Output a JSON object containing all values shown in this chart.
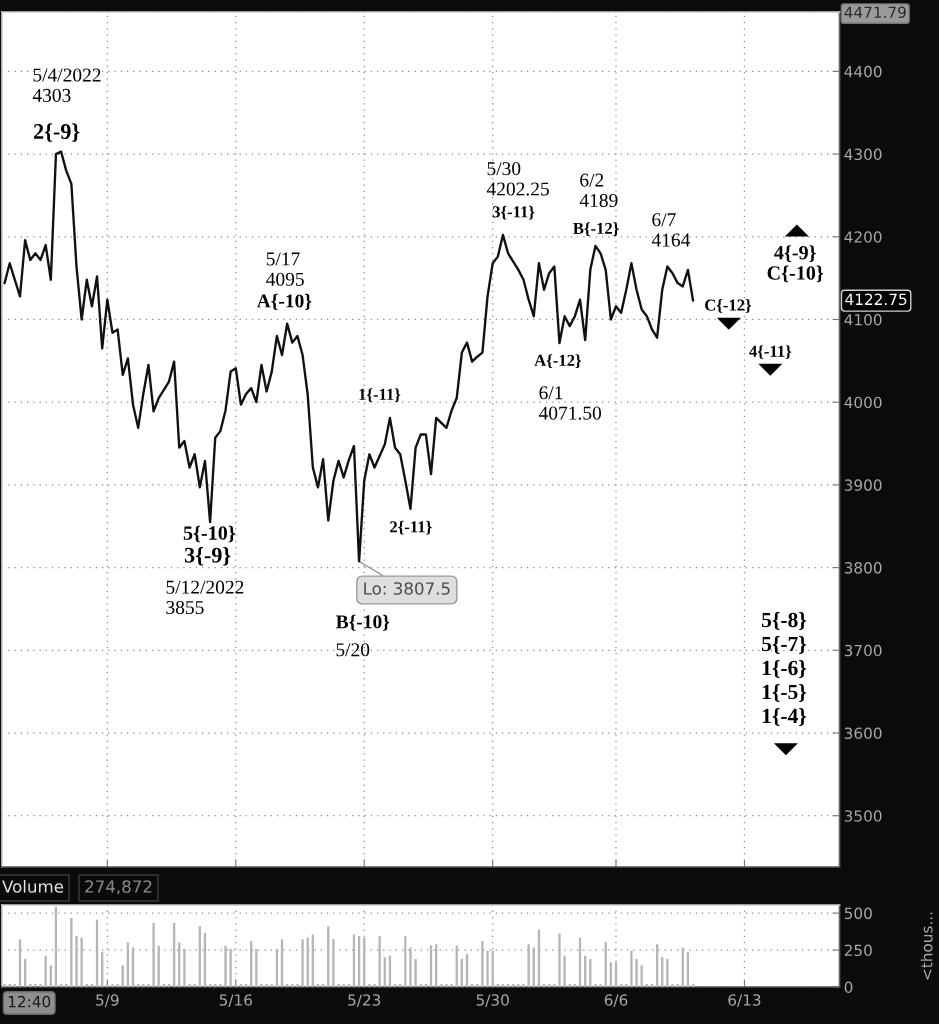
{
  "chart_data": [
    {
      "type": "line",
      "categories": [
        null,
        null,
        null,
        null,
        null,
        null,
        null,
        null,
        null,
        null,
        null,
        null,
        null,
        null,
        null,
        null,
        null,
        null,
        null,
        null,
        null,
        null,
        null,
        null,
        null,
        null,
        null,
        null,
        null,
        null,
        null,
        null,
        null,
        null,
        null,
        null,
        null,
        null,
        null,
        null,
        null,
        null,
        null,
        null,
        null,
        null,
        null,
        null,
        null,
        null,
        null,
        null,
        null,
        null,
        null,
        null,
        null,
        null,
        null,
        null,
        null,
        null,
        null,
        null,
        null,
        null,
        null,
        null,
        null,
        null,
        null,
        null,
        null,
        null,
        null,
        null,
        null,
        null,
        null,
        null,
        null,
        null,
        null,
        null,
        null,
        null,
        null,
        null,
        null,
        null,
        null,
        null,
        null,
        null,
        null,
        null,
        null,
        null,
        null,
        null,
        null,
        null,
        null,
        null,
        null,
        null,
        null,
        null,
        null,
        null,
        null,
        null,
        null,
        null,
        null,
        null,
        null,
        null,
        null,
        null,
        null,
        null,
        null,
        null,
        null,
        null,
        null,
        null,
        null,
        null,
        null,
        null,
        null,
        null,
        null,
        null,
        null,
        null,
        null,
        null,
        null,
        null,
        null,
        null,
        null,
        null,
        null,
        null,
        null,
        null,
        null,
        null,
        null,
        null,
        null,
        null,
        null,
        null,
        null,
        null,
        null,
        null,
        null
      ],
      "series": [
        {
          "color": "#111111",
          "values": [
            4144,
            4168,
            4148,
            4128,
            4196,
            4172,
            4180,
            4172,
            4190,
            4148,
            4300,
            4303,
            4280,
            4264,
            4164,
            4100,
            4148,
            4116,
            4152,
            4065,
            4124,
            4084,
            4088,
            4033,
            4053,
            3997,
            3969,
            4010,
            4045,
            3989,
            4005,
            4015,
            4025,
            4049,
            3945,
            3953,
            3921,
            3937,
            3897,
            3929,
            3855,
            3957,
            3965,
            3990,
            4037,
            4041,
            3997,
            4010,
            4017,
            4000,
            4045,
            4013,
            4037,
            4080,
            4057,
            4095,
            4072,
            4080,
            4057,
            4009,
            3921,
            3897,
            3931,
            3857,
            3905,
            3929,
            3909,
            3930,
            3947,
            3807.5,
            3905,
            3937,
            3921,
            3935,
            3949,
            3981,
            3945,
            3937,
            3905,
            3871,
            3945,
            3961,
            3961,
            3913,
            3981,
            3975,
            3969,
            3990,
            4005,
            4060,
            4072,
            4049,
            4055,
            4060,
            4128,
            4168,
            4176,
            4202.25,
            4180,
            4170,
            4160,
            4148,
            4124,
            4104,
            4168,
            4136,
            4156,
            4164,
            4071.5,
            4104,
            4092,
            4104,
            4124,
            4075,
            4160,
            4189,
            4180,
            4160,
            4100,
            4116,
            4108,
            4136,
            4168,
            4136,
            4112,
            4104,
            4088,
            4078,
            4136,
            4164,
            4156,
            4144,
            4140,
            4160,
            4122.75,
            null,
            null,
            null,
            null,
            null,
            null,
            null,
            null,
            null,
            null,
            null,
            null,
            null,
            null,
            null,
            null,
            null,
            null,
            null,
            null,
            null,
            null,
            null,
            null,
            null,
            null,
            null,
            null
          ]
        }
      ],
      "ylim": [
        3438,
        4471.79
      ],
      "yticks": [
        3500,
        3600,
        3700,
        3800,
        3900,
        4000,
        4100,
        4200,
        4300,
        4400,
        {
          "value": 4471.79,
          "label": "4471.79"
        }
      ],
      "grid": true,
      "tick_labels": "y",
      "annotations": [
        "5/4/2022\n4303",
        "2{-9}",
        "5/17\n4095",
        "A{-10}",
        "1{-11}",
        "5{-10}",
        "3{-9}",
        "5/12/2022\n3855",
        "Lo: 3807.5",
        "B{-10}",
        "5/20",
        "2{-11}",
        "5/30\n4202.25",
        "3{-11}",
        "6/2\n4189",
        "B{-12}",
        "A{-12}",
        "6/1\n4071.50",
        "6/7\n4164",
        "C{-12}",
        "4{-11}",
        "4{-9}\nC{-10}",
        "5{-8}\n5{-7}\n1{-6}\n1{-5}\n1{-4}",
        "4122.75"
      ]
    },
    {
      "type": "bar",
      "title": "Volume",
      "subtitle": "274,872",
      "ylabel": "<thous...",
      "categories": [
        null,
        null,
        null,
        null,
        null,
        null,
        null,
        null,
        null,
        null,
        null,
        null,
        null,
        null,
        null,
        null,
        null,
        null,
        null,
        null,
        "5/9",
        null,
        null,
        null,
        null,
        null,
        null,
        null,
        null,
        null,
        null,
        null,
        null,
        null,
        null,
        null,
        null,
        null,
        null,
        null,
        null,
        null,
        null,
        null,
        null,
        "5/16",
        null,
        null,
        null,
        null,
        null,
        null,
        null,
        null,
        null,
        null,
        null,
        null,
        null,
        null,
        null,
        null,
        null,
        null,
        null,
        null,
        null,
        null,
        null,
        null,
        "5/23",
        null,
        null,
        null,
        null,
        null,
        null,
        null,
        null,
        null,
        null,
        null,
        null,
        null,
        null,
        null,
        null,
        null,
        null,
        null,
        null,
        null,
        null,
        null,
        null,
        "5/30",
        null,
        null,
        null,
        null,
        null,
        null,
        null,
        null,
        null,
        null,
        null,
        null,
        null,
        null,
        null,
        null,
        null,
        null,
        null,
        null,
        null,
        null,
        null,
        "6/6",
        null,
        null,
        null,
        null,
        null,
        null,
        null,
        null,
        null,
        null,
        null,
        null,
        null,
        null,
        null,
        null,
        null,
        null,
        null,
        null,
        null,
        null,
        null,
        null,
        "6/13",
        null,
        null,
        null,
        null,
        null,
        null,
        null,
        null,
        null,
        null,
        null,
        null,
        null,
        null,
        null,
        null,
        null,
        null
      ],
      "series": [
        {
          "color": "#b5b5b5",
          "values": [
            20,
            20,
            20,
            323,
            190,
            20,
            20,
            20,
            212,
            146,
            544,
            20,
            20,
            467,
            345,
            334,
            20,
            20,
            456,
            235,
            20,
            20,
            20,
            146,
            301,
            268,
            20,
            20,
            20,
            434,
            279,
            20,
            20,
            434,
            301,
            257,
            20,
            20,
            411,
            367,
            20,
            20,
            20,
            279,
            257,
            20,
            20,
            20,
            312,
            257,
            20,
            20,
            20,
            257,
            323,
            20,
            20,
            20,
            323,
            334,
            356,
            20,
            20,
            411,
            323,
            20,
            20,
            20,
            356,
            345,
            334,
            20,
            20,
            345,
            202,
            212,
            20,
            20,
            345,
            268,
            190,
            20,
            20,
            283,
            290,
            20,
            20,
            20,
            279,
            190,
            223,
            20,
            20,
            312,
            246,
            246,
            20,
            20,
            20,
            20,
            20,
            20,
            290,
            268,
            389,
            20,
            20,
            20,
            362,
            212,
            20,
            20,
            334,
            212,
            190,
            20,
            20,
            305,
            168,
            168,
            20,
            20,
            246,
            190,
            146,
            20,
            20,
            290,
            202,
            190,
            20,
            20,
            268,
            235,
            20,
            null,
            null,
            null,
            null,
            null,
            null,
            null,
            null,
            null,
            null,
            null,
            null,
            null,
            null,
            null,
            null,
            null,
            null,
            null,
            null,
            null,
            null,
            null,
            null,
            null,
            null,
            null,
            null
          ]
        }
      ],
      "ylim": [
        0,
        555
      ],
      "yticks": [
        0,
        250,
        500
      ],
      "grid": true,
      "annotations": [
        "12:40"
      ]
    }
  ]
}
